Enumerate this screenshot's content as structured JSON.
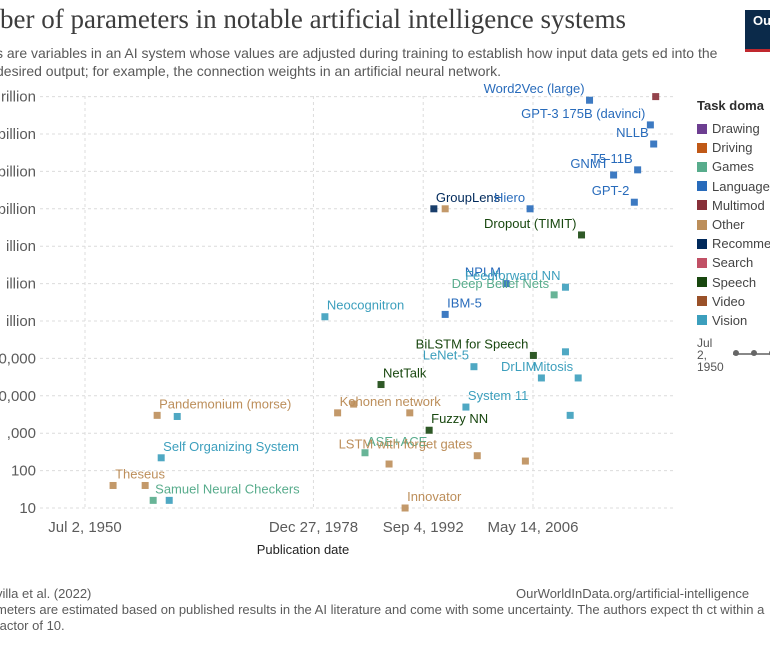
{
  "header": {
    "title": "ber of parameters in notable artificial intelligence systems",
    "subtitle": "s are variables in an AI system whose values are adjusted during training to establish how input data gets ed into the desired output; for example, the connection weights in an artificial neural network.",
    "logo_text": "Ou i"
  },
  "legend": {
    "title": "Task doma",
    "items": [
      {
        "label": "Drawing",
        "color": "#6d3e91"
      },
      {
        "label": "Driving",
        "color": "#c05917"
      },
      {
        "label": "Games",
        "color": "#58ac8c"
      },
      {
        "label": "Language",
        "color": "#286bbb"
      },
      {
        "label": "Multimod",
        "color": "#883039"
      },
      {
        "label": "Other",
        "color": "#bc8e5a"
      },
      {
        "label": "Recomme",
        "color": "#00295b"
      },
      {
        "label": "Search",
        "color": "#c15065"
      },
      {
        "label": "Speech",
        "color": "#18470f"
      },
      {
        "label": "Video",
        "color": "#9a5129"
      },
      {
        "label": "Vision",
        "color": "#3c9fbd"
      }
    ]
  },
  "timeline": {
    "start_label": "Jul\n2,\n1950"
  },
  "footer": {
    "source": "villa et al. (2022)",
    "url": "OurWorldInData.org/artificial-intelligence",
    "note": "meters are estimated based on published results in the AI literature and come with some uncertainty. The authors expect th ct within a factor of 10."
  },
  "chart_data": {
    "type": "scatter",
    "title": "ber of parameters in notable artificial intelligence systems",
    "xlabel": "Publication date",
    "ylabel": "",
    "y_scale": "log",
    "x_ticks": [
      "Jul 2, 1950",
      "Dec 27, 1978",
      "Sep 4, 1992",
      "May 14, 2006"
    ],
    "y_ticks": [
      "10",
      "100",
      ",000",
      "0,000",
      "0,000",
      "illion",
      "illion",
      "illion",
      "billion",
      "billion",
      "billion",
      "rillion"
    ],
    "grid": true,
    "points": [
      {
        "x": "1954-01-01",
        "y": 40,
        "domain": "Other",
        "label": "Theseus"
      },
      {
        "x": "1958-01-01",
        "y": 40,
        "domain": "Other"
      },
      {
        "x": "1959-01-01",
        "y": 16,
        "domain": "Games",
        "label": "Samuel Neural Checkers"
      },
      {
        "x": "1961-01-01",
        "y": 16,
        "domain": "Vision"
      },
      {
        "x": "1960-01-01",
        "y": 220,
        "domain": "Vision",
        "label": "Self Organizing System"
      },
      {
        "x": "1959-07-01",
        "y": 3000,
        "domain": "Other",
        "label": "Pandemonium (morse)"
      },
      {
        "x": "1962-01-01",
        "y": 2800,
        "domain": "Vision"
      },
      {
        "x": "1980-06-01",
        "y": 1300000,
        "domain": "Vision",
        "label": "Neocognitron"
      },
      {
        "x": "1982-01-01",
        "y": 3500,
        "domain": "Other",
        "label": "Kohonen network"
      },
      {
        "x": "1984-01-01",
        "y": 6000,
        "domain": "Other"
      },
      {
        "x": "1985-06-01",
        "y": 300,
        "domain": "Games",
        "label": "ASE+ACE"
      },
      {
        "x": "1988-06-01",
        "y": 150,
        "domain": "Other"
      },
      {
        "x": "1987-06-01",
        "y": 20000,
        "domain": "Speech",
        "label": "NetTalk"
      },
      {
        "x": "1990-06-01",
        "y": 10,
        "domain": "Other",
        "label": "Innovator"
      },
      {
        "x": "1991-01-01",
        "y": 3500,
        "domain": "Other"
      },
      {
        "x": "1993-06-01",
        "y": 1200,
        "domain": "Speech",
        "label": "Fuzzy NN"
      },
      {
        "x": "1994-01-01",
        "y": 1000000000,
        "domain": "Recommendation",
        "label": "GroupLens"
      },
      {
        "x": "1995-06-01",
        "y": 1000000000,
        "domain": "Other"
      },
      {
        "x": "1995-06-01",
        "y": 1500000,
        "domain": "Language",
        "label": "IBM-5"
      },
      {
        "x": "1998-01-01",
        "y": 5000,
        "domain": "Vision",
        "label": "System 11"
      },
      {
        "x": "1999-01-01",
        "y": 60000,
        "domain": "Vision",
        "label": "LeNet-5"
      },
      {
        "x": "1999-06-01",
        "y": 250,
        "domain": "Other",
        "label": "LSTM with forget gates"
      },
      {
        "x": "2003-01-01",
        "y": 10000000,
        "domain": "Language",
        "label": "NPLM"
      },
      {
        "x": "2006-01-01",
        "y": 1000000000,
        "domain": "Language",
        "label": "Hiero"
      },
      {
        "x": "2005-06-01",
        "y": 180,
        "domain": "Other"
      },
      {
        "x": "2006-06-01",
        "y": 120000,
        "domain": "Speech",
        "label": "BiLSTM for Speech"
      },
      {
        "x": "2007-06-01",
        "y": 30000,
        "domain": "Vision",
        "label": "DrLIM"
      },
      {
        "x": "2009-01-01",
        "y": 5000000,
        "domain": "Games",
        "label": "Deep Belief Nets"
      },
      {
        "x": "2010-06-01",
        "y": 8000000,
        "domain": "Vision",
        "label": "Feedforward NN"
      },
      {
        "x": "2010-06-01",
        "y": 150000,
        "domain": "Vision"
      },
      {
        "x": "2012-01-01",
        "y": 30000,
        "domain": "Vision",
        "label": "Mitosis"
      },
      {
        "x": "2011-01-01",
        "y": 3000,
        "domain": "Vision"
      },
      {
        "x": "2012-06-01",
        "y": 200000000,
        "domain": "Speech",
        "label": "Dropout (TIMIT)"
      },
      {
        "x": "2013-06-01",
        "y": 800000000000,
        "domain": "Language",
        "label": "Word2Vec (large)"
      },
      {
        "x": "2016-06-01",
        "y": 8000000000,
        "domain": "Language",
        "label": "GNMT"
      },
      {
        "x": "2019-01-01",
        "y": 1500000000,
        "domain": "Language",
        "label": "GPT-2"
      },
      {
        "x": "2019-06-01",
        "y": 11000000000,
        "domain": "Language",
        "label": "T5-11B"
      },
      {
        "x": "2021-01-01",
        "y": 175000000000,
        "domain": "Language",
        "label": "GPT-3 175B (davinci)"
      },
      {
        "x": "2021-06-01",
        "y": 54000000000,
        "domain": "Language",
        "label": "NLLB"
      },
      {
        "x": "2021-09-01",
        "y": 1000000000000,
        "domain": "Multimodal"
      }
    ]
  }
}
